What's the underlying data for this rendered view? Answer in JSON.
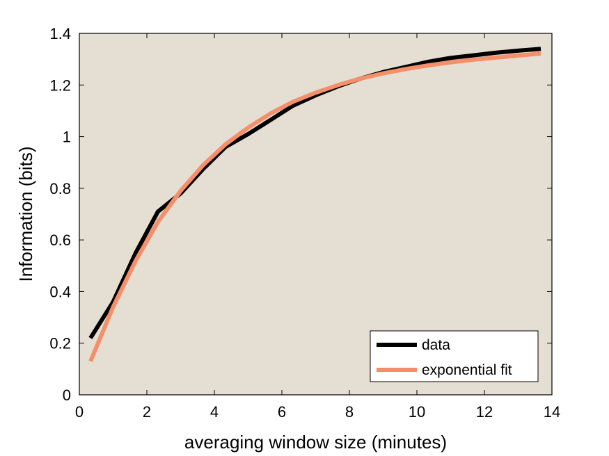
{
  "chart_data": {
    "type": "line",
    "title": "",
    "xlabel": "averaging window size (minutes)",
    "ylabel": "Information (bits)",
    "xlim": [
      0,
      14
    ],
    "ylim": [
      0,
      1.4
    ],
    "x_ticks": [
      0,
      2,
      4,
      6,
      8,
      10,
      12,
      14
    ],
    "x_tick_labels": [
      "0",
      "2",
      "4",
      "6",
      "8",
      "10",
      "12",
      "14"
    ],
    "y_ticks": [
      0,
      0.2,
      0.4,
      0.6,
      0.8,
      1.0,
      1.2,
      1.4
    ],
    "y_tick_labels": [
      "0",
      "0.2",
      "0.4",
      "0.6",
      "0.8",
      "1",
      "1.2",
      "1.4"
    ],
    "grid": false,
    "legend_position": "bottom-right",
    "plot_background": "#e5ded3",
    "series": [
      {
        "name": "data",
        "color": "#000000",
        "x": [
          0.33,
          1.0,
          1.67,
          2.33,
          3.0,
          3.67,
          4.33,
          5.0,
          5.67,
          6.33,
          7.0,
          7.67,
          8.33,
          9.0,
          9.67,
          10.33,
          11.0,
          11.67,
          12.33,
          13.0,
          13.67
        ],
        "y": [
          0.22,
          0.36,
          0.55,
          0.71,
          0.78,
          0.875,
          0.96,
          1.01,
          1.065,
          1.12,
          1.16,
          1.195,
          1.225,
          1.25,
          1.27,
          1.29,
          1.305,
          1.315,
          1.325,
          1.333,
          1.34
        ]
      },
      {
        "name": "exponential fit",
        "color": "#f58f6a",
        "x": [
          0.33,
          1.0,
          1.67,
          2.33,
          3.0,
          3.67,
          4.33,
          5.0,
          5.67,
          6.33,
          7.0,
          7.67,
          8.33,
          9.0,
          9.67,
          10.33,
          11.0,
          11.67,
          12.33,
          13.0,
          13.67
        ],
        "y": [
          0.13,
          0.34,
          0.52,
          0.67,
          0.79,
          0.89,
          0.97,
          1.035,
          1.09,
          1.135,
          1.17,
          1.2,
          1.225,
          1.245,
          1.262,
          1.276,
          1.288,
          1.298,
          1.306,
          1.314,
          1.322
        ]
      }
    ]
  }
}
